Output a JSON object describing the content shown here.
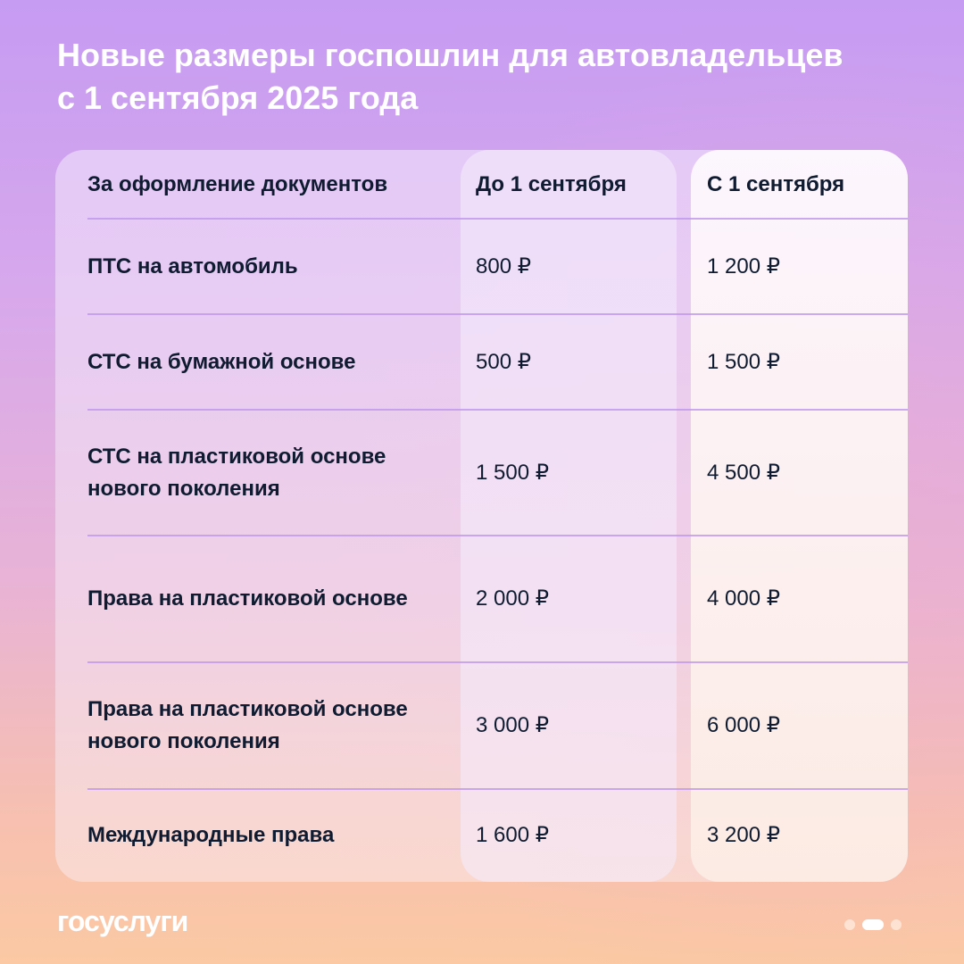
{
  "title": {
    "line1": "Новые размеры госпошлин для автовладельцев",
    "line2": "с 1 сентября 2025 года"
  },
  "table": {
    "headers": [
      "За оформление документов",
      "До 1 сентября",
      "С 1 сентября"
    ],
    "rows": [
      {
        "doc": "ПТС на автомобиль",
        "before": "800 ₽",
        "after": "1 200 ₽"
      },
      {
        "doc": "СТС на бумажной основе",
        "before": "500 ₽",
        "after": "1 500 ₽"
      },
      {
        "doc": "СТС на пластиковой основе нового поколения",
        "before": "1 500 ₽",
        "after": "4 500 ₽"
      },
      {
        "doc": "Права на пластиковой основе",
        "before": "2 000 ₽",
        "after": "4 000 ₽"
      },
      {
        "doc": "Права на пластиковой основе нового поколения",
        "before": "3 000 ₽",
        "after": "6 000 ₽"
      },
      {
        "doc": "Международные права",
        "before": "1 600 ₽",
        "after": "3 200 ₽"
      }
    ]
  },
  "footer": {
    "logo": "госуслуги",
    "pagination": {
      "total": 3,
      "active": 2
    }
  }
}
